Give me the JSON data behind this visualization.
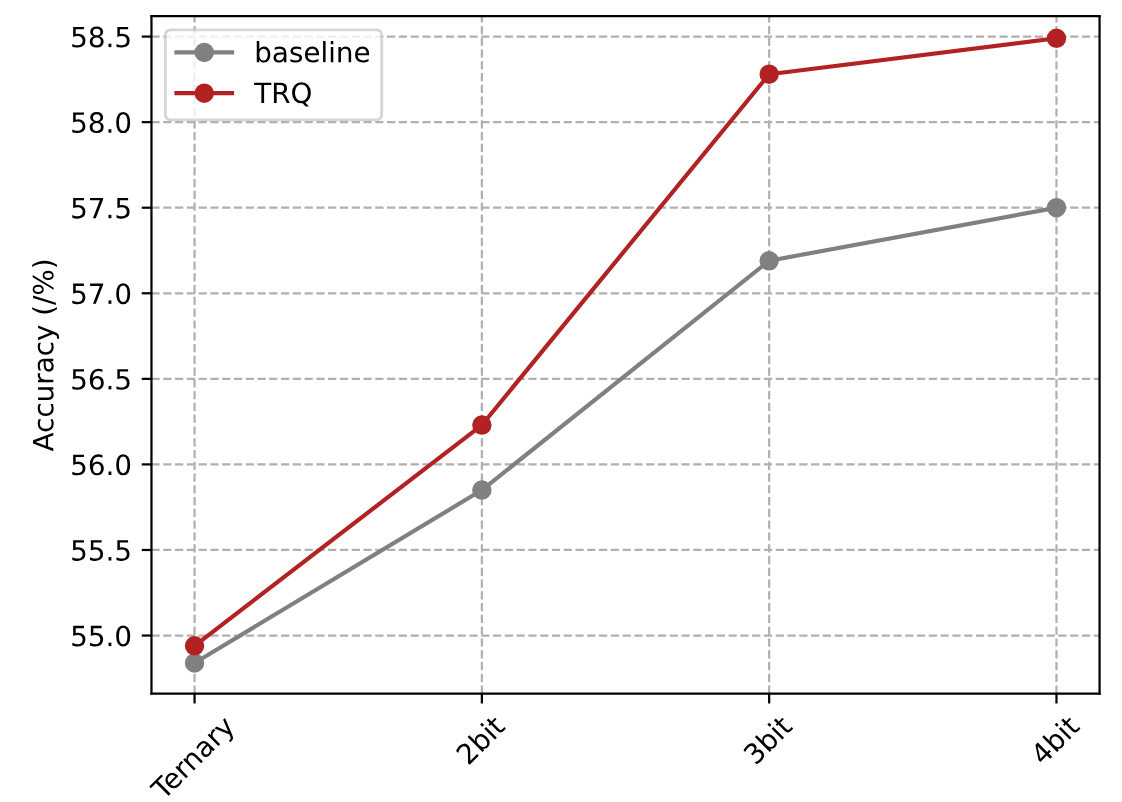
{
  "chart_data": {
    "type": "line",
    "ylabel": "Accuracy (/%)",
    "categories": [
      "Ternary",
      "2bit",
      "3bit",
      "4bit"
    ],
    "series": [
      {
        "name": "baseline",
        "color": "#808080",
        "values": [
          54.84,
          55.85,
          57.19,
          57.5
        ]
      },
      {
        "name": "TRQ",
        "color": "#b22222",
        "values": [
          54.94,
          56.23,
          58.28,
          58.49
        ]
      }
    ],
    "ylim": [
      54.66,
      58.62
    ],
    "yticks": [
      {
        "value": 55.0,
        "label": "55.0"
      },
      {
        "value": 55.5,
        "label": "55.5"
      },
      {
        "value": 56.0,
        "label": "56.0"
      },
      {
        "value": 56.5,
        "label": "56.5"
      },
      {
        "value": 57.0,
        "label": "57.0"
      },
      {
        "value": 57.5,
        "label": "57.5"
      },
      {
        "value": 58.0,
        "label": "58.0"
      },
      {
        "value": 58.5,
        "label": "58.5"
      }
    ],
    "grid": true,
    "legend": "top left",
    "marker": "circle",
    "line_style": "solid"
  }
}
